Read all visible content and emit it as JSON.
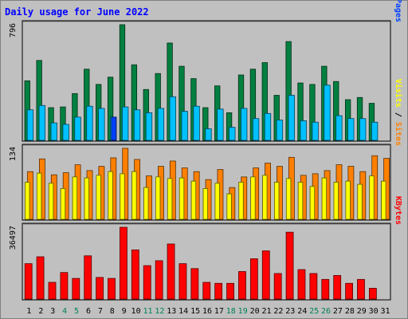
{
  "chart_data": [
    {
      "type": "bar",
      "title": "Daily usage for June 2022",
      "max_label": "796",
      "categories": [
        "1",
        "2",
        "3",
        "4",
        "5",
        "6",
        "7",
        "8",
        "9",
        "10",
        "11",
        "12",
        "13",
        "14",
        "15",
        "16",
        "17",
        "18",
        "19",
        "20",
        "21",
        "22",
        "23",
        "24",
        "25",
        "26",
        "27",
        "28",
        "29",
        "30",
        "31"
      ],
      "weekend_days": [
        "4",
        "5",
        "11",
        "12",
        "18",
        "19",
        "25",
        "26"
      ],
      "ylim": [
        0,
        796
      ],
      "series": [
        {
          "name": "Hits",
          "color": "#008040",
          "values": [
            410,
            550,
            225,
            230,
            322,
            490,
            385,
            435,
            796,
            520,
            350,
            460,
            670,
            510,
            425,
            225,
            375,
            190,
            450,
            490,
            535,
            310,
            680,
            395,
            385,
            510,
            405,
            280,
            295,
            255,
            0
          ]
        },
        {
          "name": "Files",
          "color": "#00c0ff",
          "values": [
            210,
            240,
            120,
            110,
            160,
            235,
            220,
            160,
            230,
            210,
            190,
            220,
            300,
            200,
            235,
            80,
            215,
            90,
            220,
            150,
            185,
            140,
            310,
            135,
            125,
            380,
            170,
            150,
            150,
            125,
            0
          ]
        },
        {
          "name": "Pages",
          "color": "#0040ff",
          "values": [
            0,
            0,
            0,
            0,
            0,
            0,
            0,
            160,
            0,
            0,
            0,
            0,
            0,
            0,
            0,
            0,
            0,
            0,
            0,
            0,
            0,
            0,
            0,
            0,
            0,
            0,
            0,
            0,
            0,
            0,
            0
          ]
        }
      ],
      "axis_labels": [
        "Pages",
        "Files",
        "Hits"
      ]
    },
    {
      "type": "bar",
      "max_label": "134",
      "categories": [
        "1",
        "2",
        "3",
        "4",
        "5",
        "6",
        "7",
        "8",
        "9",
        "10",
        "11",
        "12",
        "13",
        "14",
        "15",
        "16",
        "17",
        "18",
        "19",
        "20",
        "21",
        "22",
        "23",
        "24",
        "25",
        "26",
        "27",
        "28",
        "29",
        "30",
        "31"
      ],
      "ylim": [
        0,
        134
      ],
      "series": [
        {
          "name": "Sites",
          "color": "#ff8000",
          "values": [
            90,
            114,
            84,
            88,
            103,
            92,
            100,
            116,
            134,
            113,
            82,
            100,
            110,
            97,
            90,
            75,
            94,
            60,
            80,
            97,
            106,
            100,
            117,
            83,
            86,
            92,
            103,
            100,
            90,
            120,
            115
          ]
        },
        {
          "name": "Visits",
          "color": "#ffff00",
          "values": [
            70,
            87,
            68,
            58,
            80,
            78,
            83,
            90,
            86,
            90,
            60,
            80,
            77,
            78,
            72,
            58,
            68,
            48,
            70,
            80,
            83,
            70,
            77,
            70,
            62,
            78,
            70,
            72,
            66,
            82,
            72
          ]
        }
      ],
      "axis_labels": [
        "Sites",
        "Visits"
      ]
    },
    {
      "type": "bar",
      "max_label": "36497",
      "categories": [
        "1",
        "2",
        "3",
        "4",
        "5",
        "6",
        "7",
        "8",
        "9",
        "10",
        "11",
        "12",
        "13",
        "14",
        "15",
        "16",
        "17",
        "18",
        "19",
        "20",
        "21",
        "22",
        "23",
        "24",
        "25",
        "26",
        "27",
        "28",
        "29",
        "30",
        "31"
      ],
      "ylim": [
        0,
        36497
      ],
      "series": [
        {
          "name": "KBytes",
          "color": "#ff0000",
          "values": [
            18000,
            21500,
            8500,
            13500,
            10500,
            22000,
            11000,
            10500,
            36497,
            25000,
            17000,
            19500,
            28000,
            18000,
            15500,
            8500,
            8000,
            8000,
            14000,
            20500,
            24500,
            13000,
            34000,
            15000,
            13000,
            10000,
            12000,
            8000,
            10000,
            5500,
            0
          ]
        }
      ],
      "axis_labels": [
        "KBytes"
      ]
    }
  ],
  "colors": {
    "background": "#c0c0c0",
    "plot": "#c0c0c0",
    "title": "#0000ff"
  }
}
